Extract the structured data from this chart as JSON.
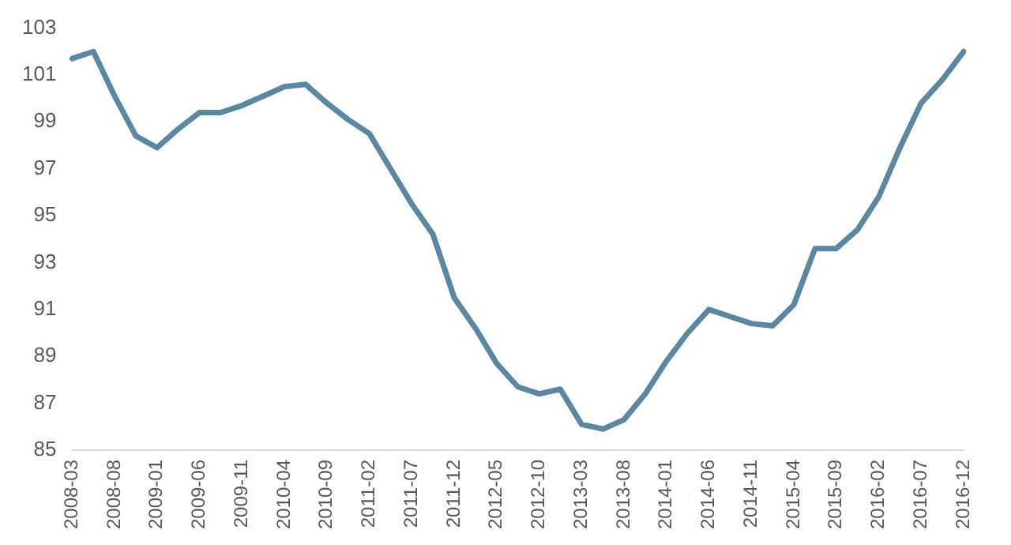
{
  "chart_data": {
    "type": "line",
    "categories": [
      "2008-03",
      null,
      "2008-08",
      null,
      "2009-01",
      null,
      "2009-06",
      null,
      "2009-11",
      null,
      "2010-04",
      null,
      "2010-09",
      null,
      "2011-02",
      null,
      "2011-07",
      null,
      "2011-12",
      null,
      "2012-05",
      null,
      "2012-10",
      null,
      "2013-03",
      null,
      "2013-08",
      null,
      "2014-01",
      null,
      "2014-06",
      null,
      "2014-11",
      null,
      "2015-04",
      null,
      "2015-09",
      null,
      "2016-02",
      null,
      "2016-07",
      null,
      "2016-12"
    ],
    "series": [
      {
        "color": "#5b87a0",
        "values": [
          101.7,
          102.0,
          100.1,
          98.4,
          97.9,
          98.7,
          99.4,
          99.4,
          99.7,
          100.1,
          100.5,
          100.6,
          99.8,
          99.1,
          98.5,
          97.0,
          95.5,
          94.2,
          91.5,
          90.2,
          88.7,
          87.7,
          87.4,
          87.6,
          86.1,
          85.9,
          86.3,
          87.4,
          88.8,
          90.0,
          91.0,
          90.7,
          90.4,
          90.3,
          91.2,
          93.6,
          93.6,
          94.4,
          95.8,
          97.9,
          99.8,
          100.8,
          102.0
        ]
      }
    ],
    "ylim": [
      85,
      103
    ],
    "yticks": [
      85,
      87,
      89,
      91,
      93,
      95,
      97,
      99,
      101,
      103
    ],
    "grid": false,
    "legend": false,
    "marker": "none",
    "line_style": "solid"
  }
}
